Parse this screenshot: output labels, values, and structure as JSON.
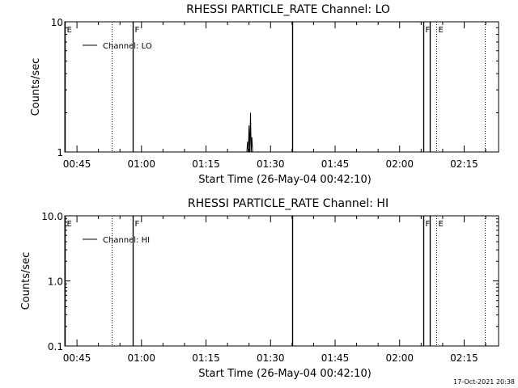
{
  "footer_timestamp": "17-Oct-2021 20:38",
  "chart_data": [
    {
      "type": "line",
      "title": "RHESSI PARTICLE_RATE Channel: LO",
      "xlabel": "Start Time (26-May-04 00:42:10)",
      "ylabel": "Counts/sec",
      "y_scale": "log",
      "ylim": [
        1,
        10
      ],
      "xlim": [
        "00:42:10",
        "02:23:00"
      ],
      "y_ticks": [
        {
          "value": 1,
          "label": "1"
        },
        {
          "value": 10,
          "label": "10"
        }
      ],
      "x_ticks": [
        {
          "time": "00:45",
          "label": "00:45"
        },
        {
          "time": "01:00",
          "label": "01:00"
        },
        {
          "time": "01:15",
          "label": "01:15"
        },
        {
          "time": "01:30",
          "label": "01:30"
        },
        {
          "time": "01:45",
          "label": "01:45"
        },
        {
          "time": "02:00",
          "label": "02:00"
        },
        {
          "time": "02:15",
          "label": "02:15"
        }
      ],
      "legend": {
        "position": "top-left",
        "entries": [
          "Channel: LO"
        ]
      },
      "markers": [
        {
          "time": "00:42:10",
          "label": "E",
          "style": "solid"
        },
        {
          "time": "00:53:00",
          "label": "",
          "style": "dotted"
        },
        {
          "time": "00:58:00",
          "label": "F",
          "style": "solid"
        },
        {
          "time": "01:35:00",
          "label": "",
          "style": "solid"
        },
        {
          "time": "02:05:30",
          "label": "F",
          "style": "solid"
        },
        {
          "time": "02:07:00",
          "label": "",
          "style": "solid"
        },
        {
          "time": "02:08:30",
          "label": "E",
          "style": "dotted"
        },
        {
          "time": "02:19:50",
          "label": "",
          "style": "dotted"
        }
      ],
      "series": [
        {
          "values": [
            {
              "x": "01:24:30",
              "y": 1
            },
            {
              "x": "01:24:40",
              "y": 1.2
            },
            {
              "x": "01:24:50",
              "y": 1
            },
            {
              "x": "01:25:00",
              "y": 1.6
            },
            {
              "x": "01:25:10",
              "y": 1
            },
            {
              "x": "01:25:20",
              "y": 2
            },
            {
              "x": "01:25:30",
              "y": 1
            },
            {
              "x": "01:25:40",
              "y": 1.3
            },
            {
              "x": "01:25:50",
              "y": 1
            }
          ]
        }
      ]
    },
    {
      "type": "line",
      "title": "RHESSI PARTICLE_RATE Channel: HI",
      "xlabel": "Start Time (26-May-04 00:42:10)",
      "ylabel": "Counts/sec",
      "y_scale": "log",
      "ylim": [
        0.1,
        10
      ],
      "xlim": [
        "00:42:10",
        "02:23:00"
      ],
      "y_ticks": [
        {
          "value": 0.1,
          "label": "0.1"
        },
        {
          "value": 1,
          "label": "1.0"
        },
        {
          "value": 10,
          "label": "10.0"
        }
      ],
      "x_ticks": [
        {
          "time": "00:45",
          "label": "00:45"
        },
        {
          "time": "01:00",
          "label": "01:00"
        },
        {
          "time": "01:15",
          "label": "01:15"
        },
        {
          "time": "01:30",
          "label": "01:30"
        },
        {
          "time": "01:45",
          "label": "01:45"
        },
        {
          "time": "02:00",
          "label": "02:00"
        },
        {
          "time": "02:15",
          "label": "02:15"
        }
      ],
      "legend": {
        "position": "top-left",
        "entries": [
          "Channel: HI"
        ]
      },
      "markers": [
        {
          "time": "00:42:10",
          "label": "E",
          "style": "solid"
        },
        {
          "time": "00:53:00",
          "label": "",
          "style": "dotted"
        },
        {
          "time": "00:58:00",
          "label": "F",
          "style": "solid"
        },
        {
          "time": "01:35:00",
          "label": "",
          "style": "solid"
        },
        {
          "time": "02:05:30",
          "label": "F",
          "style": "solid"
        },
        {
          "time": "02:07:00",
          "label": "",
          "style": "solid"
        },
        {
          "time": "02:08:30",
          "label": "E",
          "style": "dotted"
        },
        {
          "time": "02:19:50",
          "label": "",
          "style": "dotted"
        }
      ],
      "series": [
        {
          "values": []
        }
      ]
    }
  ]
}
